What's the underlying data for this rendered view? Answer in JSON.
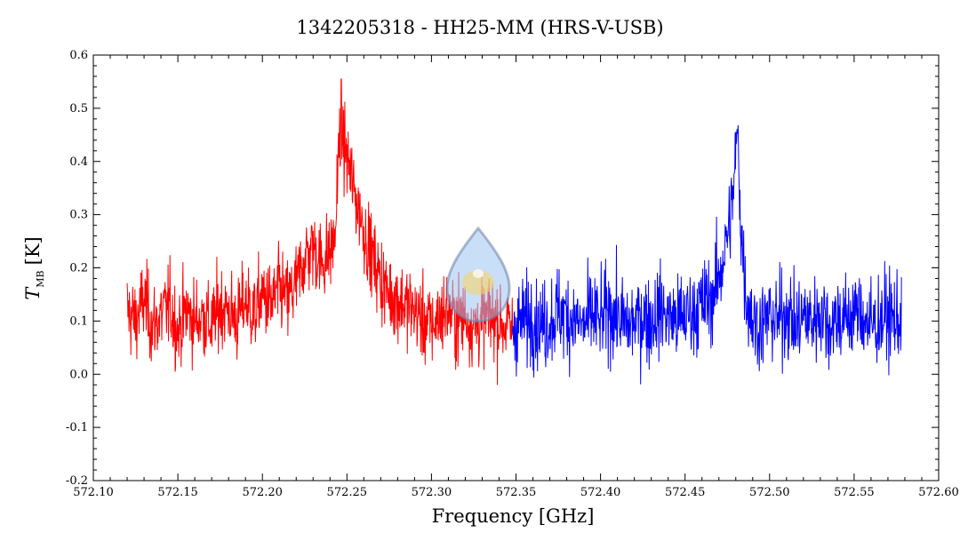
{
  "chart_data": {
    "type": "line",
    "title": "1342205318 - HH25-MM (HRS-V-USB)",
    "xlabel": "Frequency [GHz]",
    "ylabel_main": "T",
    "ylabel_sub": "MB",
    "ylabel_unit": "[K]",
    "xlim": [
      572.1,
      572.6
    ],
    "ylim": [
      -0.2,
      0.6
    ],
    "x_ticks": [
      "572.10",
      "572.15",
      "572.20",
      "572.25",
      "572.30",
      "572.35",
      "572.40",
      "572.45",
      "572.50",
      "572.55",
      "572.60"
    ],
    "y_ticks": [
      "-0.2",
      "-0.1",
      "0.0",
      "0.1",
      "0.2",
      "0.3",
      "0.4",
      "0.5",
      "0.6"
    ],
    "grid": false,
    "series": [
      {
        "color": "#ff0000",
        "x": [
          572.12,
          572.125,
          572.13,
          572.135,
          572.14,
          572.145,
          572.15,
          572.155,
          572.16,
          572.165,
          572.17,
          572.175,
          572.18,
          572.185,
          572.19,
          572.195,
          572.2,
          572.205,
          572.21,
          572.215,
          572.22,
          572.225,
          572.23,
          572.235,
          572.24,
          572.243,
          572.246,
          572.249,
          572.252,
          572.255,
          572.258,
          572.261,
          572.265,
          572.27,
          572.275,
          572.28,
          572.285,
          572.29,
          572.295,
          572.3,
          572.305,
          572.31,
          572.315,
          572.32,
          572.325,
          572.33,
          572.335,
          572.34,
          572.345,
          572.348
        ],
        "y": [
          0.12,
          0.1,
          0.14,
          0.09,
          0.11,
          0.13,
          0.08,
          0.12,
          0.1,
          0.11,
          0.09,
          0.13,
          0.12,
          0.1,
          0.14,
          0.11,
          0.15,
          0.13,
          0.16,
          0.14,
          0.17,
          0.22,
          0.24,
          0.21,
          0.23,
          0.26,
          0.47,
          0.42,
          0.38,
          0.33,
          0.3,
          0.26,
          0.22,
          0.18,
          0.15,
          0.14,
          0.13,
          0.12,
          0.1,
          0.09,
          0.11,
          0.12,
          0.1,
          0.11,
          0.09,
          0.1,
          0.11,
          0.1,
          0.09,
          0.08
        ],
        "noise": 0.06
      },
      {
        "color": "#0000ff",
        "x": [
          572.348,
          572.355,
          572.36,
          572.365,
          572.37,
          572.375,
          572.38,
          572.385,
          572.39,
          572.395,
          572.4,
          572.405,
          572.41,
          572.415,
          572.42,
          572.425,
          572.43,
          572.435,
          572.44,
          572.445,
          572.45,
          572.455,
          572.46,
          572.465,
          572.47,
          572.474,
          572.477,
          572.479,
          572.481,
          572.483,
          572.486,
          572.49,
          572.495,
          572.5,
          572.505,
          572.51,
          572.515,
          572.52,
          572.525,
          572.53,
          572.535,
          572.54,
          572.545,
          572.55,
          572.555,
          572.56,
          572.565,
          572.57,
          572.575,
          572.578
        ],
        "y": [
          0.09,
          0.1,
          0.11,
          0.09,
          0.1,
          0.12,
          0.11,
          0.1,
          0.09,
          0.11,
          0.1,
          0.12,
          0.11,
          0.09,
          0.1,
          0.11,
          0.1,
          0.12,
          0.11,
          0.1,
          0.11,
          0.12,
          0.13,
          0.14,
          0.18,
          0.24,
          0.3,
          0.36,
          0.46,
          0.28,
          0.15,
          0.1,
          0.09,
          0.11,
          0.1,
          0.12,
          0.09,
          0.11,
          0.1,
          0.12,
          0.09,
          0.11,
          0.1,
          0.12,
          0.11,
          0.09,
          0.1,
          0.11,
          0.1,
          0.11
        ],
        "noise": 0.065
      }
    ]
  }
}
